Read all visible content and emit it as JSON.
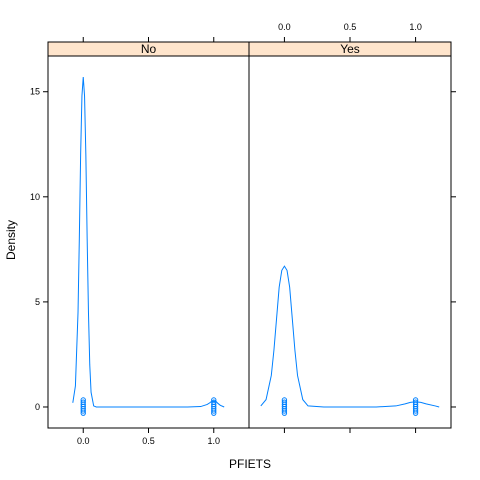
{
  "chart_data": {
    "type": "density",
    "xlabel": "PFIETS",
    "ylabel": "Density",
    "xlim": [
      -0.27,
      1.27
    ],
    "ylim": [
      -1.0,
      16.7
    ],
    "x_ticks": [
      "0.0",
      "0.5",
      "1.0"
    ],
    "x_tick_values": [
      0,
      0.5,
      1.0
    ],
    "y_ticks": [
      "0",
      "5",
      "10",
      "15"
    ],
    "y_tick_values": [
      0,
      5,
      10,
      15
    ],
    "line_color": "#0080ff",
    "strip_color": "#ffe5cc",
    "panels": [
      {
        "name": "No",
        "x": [
          -0.08,
          -0.06,
          -0.04,
          -0.03,
          -0.02,
          -0.01,
          0.0,
          0.01,
          0.02,
          0.03,
          0.04,
          0.05,
          0.06,
          0.08,
          0.1,
          0.2,
          0.4,
          0.6,
          0.8,
          0.9,
          0.95,
          0.97,
          0.98,
          1.0,
          1.02,
          1.03,
          1.05,
          1.08
        ],
        "y": [
          0.2,
          1.0,
          4.5,
          8.0,
          12.0,
          14.8,
          15.7,
          14.8,
          12.0,
          8.0,
          4.5,
          2.0,
          0.7,
          0.05,
          0.0,
          0.0,
          0.0,
          0.0,
          0.0,
          0.02,
          0.12,
          0.2,
          0.25,
          0.28,
          0.25,
          0.18,
          0.08,
          0.0
        ],
        "rug_x": [
          0.0,
          1.0
        ]
      },
      {
        "name": "Yes",
        "x": [
          -0.18,
          -0.14,
          -0.1,
          -0.08,
          -0.06,
          -0.04,
          -0.02,
          0.0,
          0.02,
          0.04,
          0.06,
          0.08,
          0.1,
          0.14,
          0.18,
          0.3,
          0.5,
          0.7,
          0.85,
          0.92,
          0.96,
          1.0,
          1.04,
          1.08,
          1.15,
          1.18
        ],
        "y": [
          0.05,
          0.35,
          1.5,
          2.7,
          4.2,
          5.7,
          6.5,
          6.7,
          6.5,
          5.7,
          4.2,
          2.7,
          1.5,
          0.35,
          0.05,
          0.0,
          0.0,
          0.0,
          0.05,
          0.15,
          0.22,
          0.25,
          0.22,
          0.15,
          0.05,
          0.0
        ],
        "rug_x": [
          0.0,
          1.0
        ]
      }
    ]
  }
}
